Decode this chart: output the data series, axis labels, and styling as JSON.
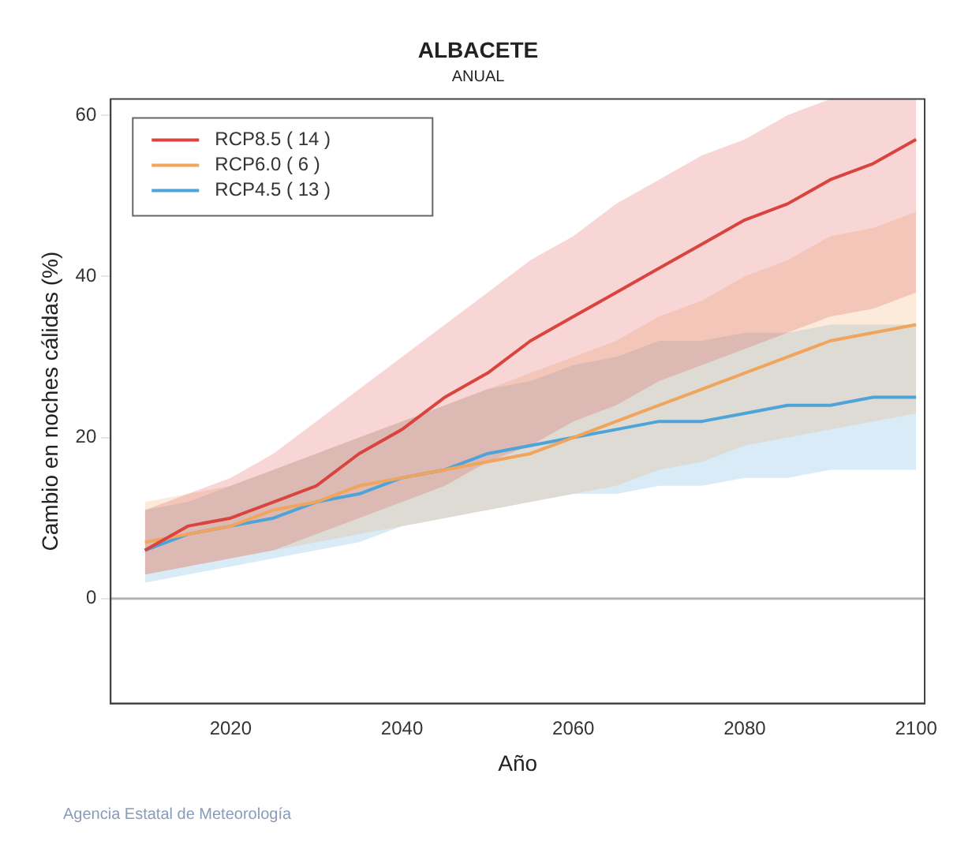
{
  "chart_data": {
    "type": "line",
    "title": "ALBACETE",
    "subtitle": "ANUAL",
    "xlabel": "Año",
    "ylabel": "Cambio en noches cálidas (%)",
    "x": [
      2010,
      2015,
      2020,
      2025,
      2030,
      2035,
      2040,
      2045,
      2050,
      2055,
      2060,
      2065,
      2070,
      2075,
      2080,
      2085,
      2090,
      2095,
      2100
    ],
    "series": [
      {
        "name": "RCP8.5 ( 14 )",
        "color": "#d9443f",
        "values": [
          6,
          9,
          10,
          12,
          14,
          18,
          21,
          25,
          28,
          32,
          35,
          38,
          41,
          44,
          47,
          49,
          52,
          54,
          57
        ],
        "lower": [
          3,
          4,
          5,
          6,
          8,
          10,
          12,
          14,
          17,
          19,
          22,
          24,
          27,
          29,
          31,
          33,
          35,
          36,
          38
        ],
        "upper": [
          11,
          13,
          15,
          18,
          22,
          26,
          30,
          34,
          38,
          42,
          45,
          49,
          52,
          55,
          57,
          60,
          62,
          62,
          62
        ]
      },
      {
        "name": "RCP6.0 ( 6 )",
        "color": "#f0a45c",
        "values": [
          7,
          8,
          9,
          11,
          12,
          14,
          15,
          16,
          17,
          18,
          20,
          22,
          24,
          26,
          28,
          30,
          32,
          33,
          34
        ],
        "lower": [
          3,
          4,
          5,
          6,
          7,
          8,
          9,
          10,
          11,
          12,
          13,
          14,
          16,
          17,
          19,
          20,
          21,
          22,
          23
        ],
        "upper": [
          12,
          13,
          14,
          16,
          18,
          20,
          22,
          24,
          26,
          28,
          30,
          32,
          35,
          37,
          40,
          42,
          45,
          46,
          48
        ]
      },
      {
        "name": "RCP4.5 ( 13 )",
        "color": "#4ea4d8",
        "values": [
          6,
          8,
          9,
          10,
          12,
          13,
          15,
          16,
          18,
          19,
          20,
          21,
          22,
          22,
          23,
          24,
          24,
          25,
          25
        ],
        "lower": [
          2,
          3,
          4,
          5,
          6,
          7,
          9,
          10,
          11,
          12,
          13,
          13,
          14,
          14,
          15,
          15,
          16,
          16,
          16
        ],
        "upper": [
          11,
          12,
          14,
          16,
          18,
          20,
          22,
          24,
          26,
          27,
          29,
          30,
          32,
          32,
          33,
          33,
          34,
          34,
          34
        ]
      }
    ],
    "xlim": [
      2006,
      2101
    ],
    "xticks": [
      2020,
      2040,
      2060,
      2080,
      2100
    ],
    "ylim": [
      -13,
      62
    ],
    "yticks": [
      0,
      20,
      40,
      60
    ],
    "ref_lines": [
      {
        "axis": "y",
        "value": 0,
        "color": "#b4b4b4"
      }
    ],
    "legend": "top left",
    "grid": false,
    "marker": "none",
    "line_style": "solid",
    "annotations": [
      "Agencia Estatal de Meteorología"
    ]
  }
}
